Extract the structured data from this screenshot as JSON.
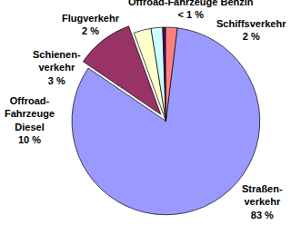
{
  "chart_data": {
    "type": "pie",
    "categories": [
      "Straßen-\nverkehr",
      "Offroad-\nFahrzeuge\nDiesel",
      "Schienen-\nverkehr",
      "Flugverkehr",
      "Offroad-Fahrzeuge Benzin",
      "Schiffsverkehr"
    ],
    "values": [
      83,
      10,
      3,
      2,
      0.5,
      2
    ],
    "value_labels": [
      "83 %",
      "10 %",
      "3 %",
      "2 %",
      "< 1 %",
      "2 %"
    ],
    "colors": [
      "#9999ff",
      "#993366",
      "#ffffcc",
      "#ccffff",
      "#660066",
      "#ff8080"
    ],
    "data_labels": true
  }
}
